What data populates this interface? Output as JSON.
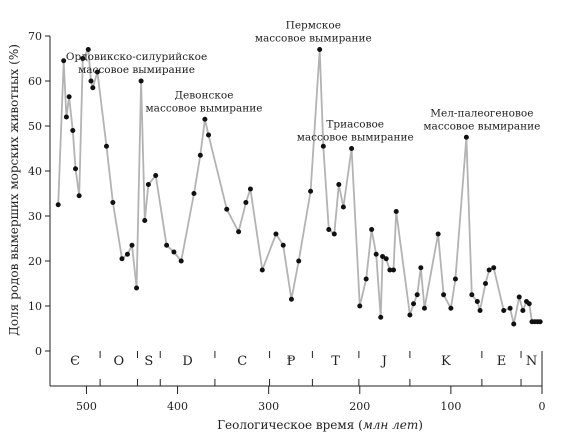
{
  "chart_data": {
    "type": "line",
    "title": "",
    "xlabel": "Геологическое время (млн лет)",
    "xlabel_main": "Геологическое время (",
    "xlabel_italic": "млн лет",
    "xlabel_close": ")",
    "ylabel": "Доля родов вымерших морских животных (%)",
    "xlim": [
      540,
      0
    ],
    "ylim": [
      0,
      70
    ],
    "x_ticks": [
      {
        "value": 500,
        "label": "500"
      },
      {
        "value": 400,
        "label": "400"
      },
      {
        "value": 300,
        "label": "300"
      },
      {
        "value": 200,
        "label": "200"
      },
      {
        "value": 100,
        "label": "100"
      },
      {
        "value": 0,
        "label": "0"
      }
    ],
    "y_ticks": [
      {
        "value": 0,
        "label": "0"
      },
      {
        "value": 10,
        "label": "10"
      },
      {
        "value": 20,
        "label": "20"
      },
      {
        "value": 30,
        "label": "30"
      },
      {
        "value": 40,
        "label": "40"
      },
      {
        "value": 50,
        "label": "50"
      },
      {
        "value": 60,
        "label": "60"
      },
      {
        "value": 70,
        "label": "70"
      }
    ],
    "periods": [
      {
        "label": "Є",
        "start": 541,
        "end": 485
      },
      {
        "label": "O",
        "start": 485,
        "end": 444
      },
      {
        "label": "S",
        "start": 444,
        "end": 419
      },
      {
        "label": "D",
        "start": 419,
        "end": 359
      },
      {
        "label": "C",
        "start": 359,
        "end": 299
      },
      {
        "label": "Ᵽ",
        "start": 299,
        "end": 252
      },
      {
        "label": "T",
        "start": 252,
        "end": 201
      },
      {
        "label": "J",
        "start": 201,
        "end": 145
      },
      {
        "label": "K",
        "start": 145,
        "end": 66
      },
      {
        "label": "E",
        "start": 66,
        "end": 23
      },
      {
        "label": "N",
        "start": 23,
        "end": 0
      }
    ],
    "annotations": [
      {
        "lines": [
          "Ордовикско-силурийское",
          "массовое вымирание"
        ],
        "x": 445,
        "y": 60
      },
      {
        "lines": [
          "Девонское",
          "массовое вымирание"
        ],
        "x": 371,
        "y": 51.5
      },
      {
        "lines": [
          "Пермское",
          "массовое вымирание"
        ],
        "x": 251,
        "y": 67
      },
      {
        "lines": [
          "Триасовое",
          "массовое вымирание"
        ],
        "x": 205,
        "y": 45
      },
      {
        "lines": [
          "Мел-палеогеновое",
          "массовое вымирание"
        ],
        "x": 66,
        "y": 47.5
      }
    ],
    "series": [
      {
        "x": [
          531,
          525,
          522,
          519,
          515,
          512,
          508,
          504,
          498,
          495,
          493,
          488,
          478,
          471,
          461,
          455,
          450,
          445,
          440,
          436,
          432,
          424,
          412,
          404,
          396,
          382,
          375,
          370,
          366,
          346,
          333,
          325,
          320,
          307,
          292,
          284,
          275,
          267,
          254,
          244,
          240,
          234,
          228,
          223,
          218,
          209,
          200,
          193,
          187,
          182,
          177,
          175,
          171,
          167,
          163,
          160,
          145,
          141,
          137,
          133,
          129,
          114,
          108,
          100,
          95,
          83,
          77,
          71,
          68,
          62,
          58,
          53,
          42,
          35,
          31,
          25,
          21,
          17,
          14,
          11,
          8,
          5,
          2
        ],
        "y": [
          32.5,
          64.5,
          52,
          56.5,
          49,
          40.5,
          34.5,
          65,
          67,
          60,
          58.5,
          62,
          45.5,
          33,
          20.5,
          21.5,
          23.5,
          14,
          60,
          29,
          37,
          39,
          23.5,
          22,
          20,
          35,
          43.5,
          51.5,
          48,
          31.5,
          26.5,
          33,
          36,
          18,
          26,
          23.5,
          11.5,
          20,
          35.5,
          67,
          45.5,
          27,
          26,
          37,
          32,
          45,
          10,
          16,
          27,
          21.5,
          7.5,
          21,
          20.5,
          18,
          18,
          31,
          8,
          10.5,
          12.5,
          18.5,
          9.5,
          26,
          12.5,
          9.5,
          16,
          47.5,
          12.5,
          11,
          9,
          15,
          18,
          18.5,
          9,
          9.5,
          6,
          12,
          9,
          11,
          10.5,
          6.5,
          6.5,
          6.5,
          6.5
        ]
      }
    ]
  }
}
